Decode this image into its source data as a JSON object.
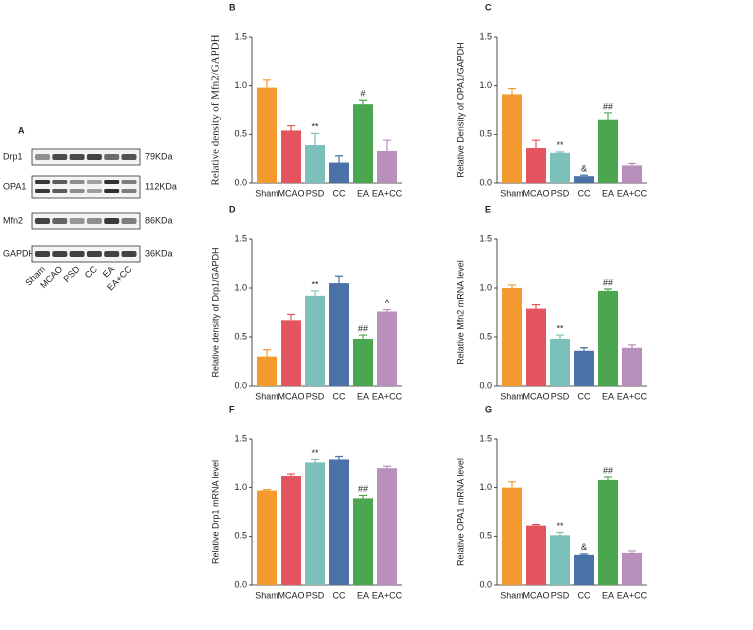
{
  "blot": {
    "label": "A",
    "rows": [
      {
        "protein": "Drp1",
        "size": "79KDa"
      },
      {
        "protein": "OPA1",
        "size": "112KDa"
      },
      {
        "protein": "Mfn2",
        "size": "86KDa"
      },
      {
        "protein": "GAPDH",
        "size": "36KDa"
      }
    ],
    "lanes": [
      "Sham",
      "MCAO",
      "PSD",
      "CC",
      "EA",
      "EA+CC"
    ]
  },
  "chart_data": [
    {
      "type": "bar",
      "panel": "B",
      "ylabel": "Relative density of Mfn2/GAPDH",
      "categories": [
        "Sham",
        "MCAO",
        "PSD",
        "CC",
        "EA",
        "EA+CC"
      ],
      "values": [
        0.98,
        0.54,
        0.39,
        0.21,
        0.81,
        0.33
      ],
      "errors": [
        0.08,
        0.05,
        0.12,
        0.07,
        0.04,
        0.11
      ],
      "annotations": [
        null,
        null,
        "**",
        null,
        "#",
        null
      ],
      "colors": [
        "#f39a2e",
        "#e4545f",
        "#7cc0bb",
        "#4a72a8",
        "#4aa64f",
        "#b88fba"
      ],
      "ylim": [
        0,
        1.5
      ],
      "yticks": [
        {
          "value": 0,
          "label": "0.0"
        },
        0.5,
        {
          "value": 1,
          "label": "1.0"
        },
        1.5
      ]
    },
    {
      "type": "bar",
      "panel": "C",
      "ylabel": "Relative Density of OPA1/GAPDH",
      "categories": [
        "Sham",
        "MCAO",
        "PSD",
        "CC",
        "EA",
        "EA+CC"
      ],
      "values": [
        0.91,
        0.36,
        0.31,
        0.07,
        0.65,
        0.18
      ],
      "errors": [
        0.06,
        0.08,
        0.01,
        0.01,
        0.07,
        0.02
      ],
      "annotations": [
        null,
        null,
        "**",
        "&",
        "##",
        null
      ],
      "colors": [
        "#f39a2e",
        "#e4545f",
        "#7cc0bb",
        "#4a72a8",
        "#4aa64f",
        "#b88fba"
      ],
      "ylim": [
        0,
        1.5
      ],
      "yticks": [
        {
          "value": 0,
          "label": "0.0"
        },
        0.5,
        {
          "value": 1,
          "label": "1.0"
        },
        1.5
      ]
    },
    {
      "type": "bar",
      "panel": "D",
      "ylabel": "Relative density of Drp1/GAPDH",
      "categories": [
        "Sham",
        "MCAO",
        "PSD",
        "CC",
        "EA",
        "EA+CC"
      ],
      "values": [
        0.3,
        0.67,
        0.92,
        1.05,
        0.48,
        0.76
      ],
      "errors": [
        0.07,
        0.06,
        0.05,
        0.07,
        0.04,
        0.02
      ],
      "annotations": [
        null,
        null,
        "**",
        null,
        "##",
        "^"
      ],
      "colors": [
        "#f39a2e",
        "#e4545f",
        "#7cc0bb",
        "#4a72a8",
        "#4aa64f",
        "#b88fba"
      ],
      "ylim": [
        0,
        1.5
      ],
      "yticks": [
        {
          "value": 0,
          "label": "0.0"
        },
        0.5,
        {
          "value": 1,
          "label": "1.0"
        },
        1.5
      ]
    },
    {
      "type": "bar",
      "panel": "E",
      "ylabel": "Relative Mfn2 mRNA level",
      "categories": [
        "Sham",
        "MCAO",
        "PSD",
        "CC",
        "EA",
        "EA+CC"
      ],
      "values": [
        1.0,
        0.79,
        0.48,
        0.36,
        0.97,
        0.39
      ],
      "errors": [
        0.03,
        0.04,
        0.04,
        0.03,
        0.02,
        0.03
      ],
      "annotations": [
        null,
        null,
        "**",
        null,
        "##",
        null
      ],
      "colors": [
        "#f39a2e",
        "#e4545f",
        "#7cc0bb",
        "#4a72a8",
        "#4aa64f",
        "#b88fba"
      ],
      "ylim": [
        0,
        1.5
      ],
      "yticks": [
        {
          "value": 0,
          "label": "0.0"
        },
        0.5,
        {
          "value": 1,
          "label": "1.0"
        },
        1.5
      ]
    },
    {
      "type": "bar",
      "panel": "F",
      "ylabel": "Relative Drp1 mRNA level",
      "categories": [
        "Sham",
        "MCAO",
        "PSD",
        "CC",
        "EA",
        "EA+CC"
      ],
      "values": [
        0.97,
        1.12,
        1.26,
        1.29,
        0.89,
        1.2
      ],
      "errors": [
        0.01,
        0.02,
        0.03,
        0.03,
        0.03,
        0.02
      ],
      "annotations": [
        null,
        null,
        "**",
        null,
        "##",
        null
      ],
      "colors": [
        "#f39a2e",
        "#e4545f",
        "#7cc0bb",
        "#4a72a8",
        "#4aa64f",
        "#b88fba"
      ],
      "ylim": [
        0,
        1.5
      ],
      "yticks": [
        {
          "value": 0,
          "label": "0.0"
        },
        0.5,
        {
          "value": 1,
          "label": "1.0"
        },
        1.5
      ]
    },
    {
      "type": "bar",
      "panel": "G",
      "ylabel": "Relative OPA1 mRNA level",
      "categories": [
        "Sham",
        "MCAO",
        "PSD",
        "CC",
        "EA",
        "EA+CC"
      ],
      "values": [
        1.0,
        0.61,
        0.51,
        0.31,
        1.08,
        0.33
      ],
      "errors": [
        0.06,
        0.01,
        0.03,
        0.01,
        0.03,
        0.02
      ],
      "annotations": [
        null,
        null,
        "**",
        "&",
        "##",
        null
      ],
      "colors": [
        "#f39a2e",
        "#e4545f",
        "#7cc0bb",
        "#4a72a8",
        "#4aa64f",
        "#b88fba"
      ],
      "ylim": [
        0,
        1.5
      ],
      "yticks": [
        {
          "value": 0,
          "label": "0.0"
        },
        0.5,
        {
          "value": 1,
          "label": "1.0"
        },
        1.5
      ]
    }
  ]
}
